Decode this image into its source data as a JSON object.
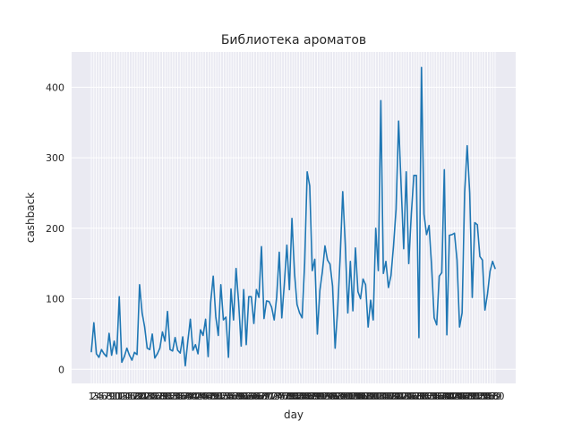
{
  "chart_data": {
    "type": "line",
    "title": "Библиотека ароматов",
    "xlabel": "day",
    "ylabel": "cashback",
    "ylim": [
      -20,
      450
    ],
    "yticks": [
      0,
      100,
      200,
      300,
      400
    ],
    "grid": true,
    "style": "seaborn-darkgrid",
    "series": [
      {
        "color": "#1f77b4",
        "values": [
          25,
          66,
          22,
          17,
          28,
          22,
          18,
          51,
          20,
          40,
          22,
          103,
          10,
          18,
          30,
          20,
          13,
          24,
          21,
          120,
          80,
          60,
          30,
          28,
          50,
          16,
          22,
          30,
          53,
          40,
          82,
          28,
          26,
          45,
          27,
          23,
          46,
          5,
          40,
          71,
          27,
          35,
          22,
          56,
          48,
          71,
          18,
          95,
          132,
          75,
          48,
          120,
          70,
          74,
          17,
          114,
          70,
          143,
          95,
          33,
          113,
          35,
          103,
          103,
          65,
          113,
          102,
          174,
          72,
          97,
          96,
          88,
          70,
          103,
          166,
          73,
          121,
          176,
          113,
          214,
          137,
          92,
          80,
          73,
          150,
          280,
          260,
          140,
          156,
          50,
          112,
          139,
          175,
          155,
          149,
          118,
          30,
          85,
          160,
          252,
          177,
          80,
          153,
          83,
          172,
          110,
          100,
          128,
          120,
          60,
          98,
          70,
          200,
          140,
          381,
          136,
          153,
          116,
          133,
          175,
          227,
          352,
          260,
          171,
          280,
          150,
          220,
          275,
          275,
          45,
          428,
          220,
          191,
          204,
          146,
          73,
          63,
          132,
          137,
          283,
          49,
          190,
          191,
          193,
          155,
          60,
          80,
          250,
          317,
          250,
          102,
          208,
          205,
          160,
          155,
          84,
          107,
          139,
          153,
          143
        ]
      }
    ]
  }
}
